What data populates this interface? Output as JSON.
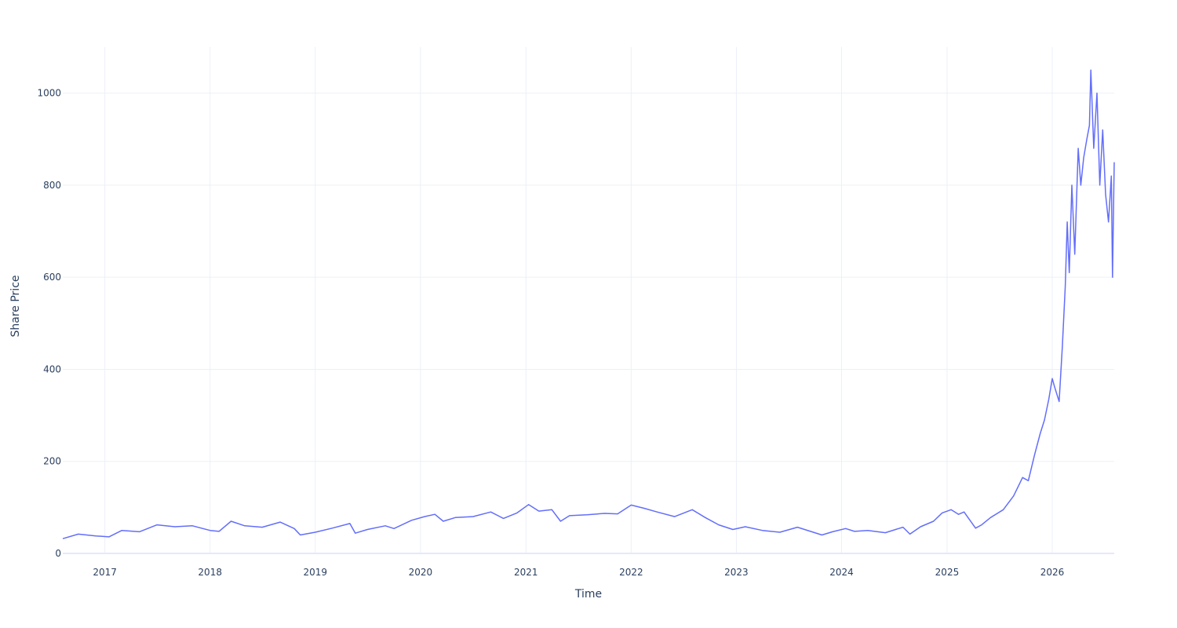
{
  "chart_data": {
    "type": "line",
    "title": "",
    "xlabel": "Time",
    "ylabel": "Share Price",
    "xlim": [
      "2016-08-08",
      "2026-08-04"
    ],
    "ylim": [
      0,
      1100
    ],
    "grid": true,
    "legend": "none",
    "line_color": "#636efa",
    "x_ticks": [
      "2017",
      "2018",
      "2019",
      "2020",
      "2021",
      "2022",
      "2023",
      "2024",
      "2025",
      "2026"
    ],
    "y_ticks": [
      0,
      200,
      400,
      600,
      800,
      1000
    ],
    "series": [
      {
        "x": [
          "2016-08-08",
          "2016-10-01",
          "2016-12-01",
          "2017-01-15",
          "2017-03-01",
          "2017-05-01",
          "2017-07-01",
          "2017-09-01",
          "2017-11-01",
          "2018-01-01",
          "2018-02-01",
          "2018-03-15",
          "2018-05-01",
          "2018-07-01",
          "2018-09-01",
          "2018-10-20",
          "2018-11-10",
          "2019-01-01",
          "2019-03-01",
          "2019-05-01",
          "2019-05-20",
          "2019-07-01",
          "2019-09-01",
          "2019-10-01",
          "2019-12-01",
          "2020-01-15",
          "2020-02-20",
          "2020-03-20",
          "2020-05-01",
          "2020-07-01",
          "2020-09-01",
          "2020-10-15",
          "2020-12-01",
          "2021-01-10",
          "2021-02-15",
          "2021-04-01",
          "2021-05-01",
          "2021-06-01",
          "2021-08-01",
          "2021-10-01",
          "2021-11-15",
          "2022-01-01",
          "2022-02-15",
          "2022-04-01",
          "2022-06-01",
          "2022-08-01",
          "2022-09-15",
          "2022-11-01",
          "2022-12-20",
          "2023-02-01",
          "2023-04-01",
          "2023-06-01",
          "2023-08-01",
          "2023-10-25",
          "2023-12-01",
          "2024-01-15",
          "2024-02-15",
          "2024-04-01",
          "2024-06-01",
          "2024-08-01",
          "2024-08-25",
          "2024-10-01",
          "2024-11-15",
          "2024-12-15",
          "2025-01-15",
          "2025-02-10",
          "2025-03-01",
          "2025-04-10",
          "2025-05-01",
          "2025-06-01",
          "2025-07-15",
          "2025-08-20",
          "2025-09-20",
          "2025-10-10",
          "2025-11-01",
          "2025-11-20",
          "2025-12-05",
          "2025-12-20",
          "2026-01-01",
          "2026-01-10",
          "2026-01-25",
          "2026-02-05",
          "2026-02-15",
          "2026-02-22",
          "2026-03-01",
          "2026-03-10",
          "2026-03-20",
          "2026-04-01",
          "2026-04-10",
          "2026-04-20",
          "2026-05-01",
          "2026-05-10",
          "2026-05-15",
          "2026-05-25",
          "2026-06-05",
          "2026-06-15",
          "2026-06-25",
          "2026-07-05",
          "2026-07-15",
          "2026-07-25",
          "2026-07-29",
          "2026-08-04"
        ],
        "y": [
          32,
          42,
          38,
          36,
          50,
          47,
          62,
          58,
          60,
          50,
          48,
          70,
          60,
          57,
          68,
          54,
          40,
          46,
          55,
          65,
          44,
          52,
          60,
          54,
          72,
          80,
          85,
          70,
          78,
          80,
          90,
          76,
          88,
          106,
          92,
          95,
          70,
          82,
          84,
          87,
          86,
          105,
          98,
          90,
          80,
          95,
          78,
          62,
          52,
          58,
          50,
          46,
          57,
          40,
          47,
          54,
          48,
          50,
          45,
          57,
          42,
          58,
          70,
          88,
          95,
          85,
          90,
          55,
          62,
          78,
          95,
          125,
          165,
          158,
          215,
          260,
          290,
          335,
          380,
          360,
          330,
          450,
          580,
          720,
          610,
          800,
          650,
          880,
          800,
          860,
          900,
          930,
          1050,
          880,
          1000,
          800,
          920,
          780,
          720,
          820,
          600,
          850
        ]
      }
    ]
  }
}
